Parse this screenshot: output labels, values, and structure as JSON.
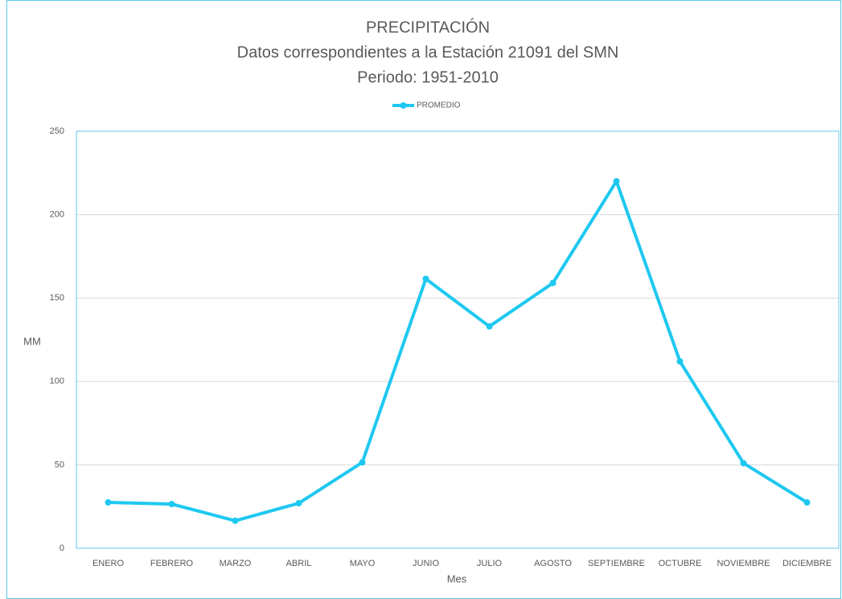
{
  "chart_data": {
    "type": "line",
    "title": "PRECIPITACIÓN",
    "subtitle": [
      "Datos correspondientes  a la Estación 21091 del SMN",
      "Periodo: 1951-2010"
    ],
    "x_label": "Mes",
    "y_label": "MM",
    "categories": [
      "ENERO",
      "FEBRERO",
      "MARZO",
      "ABRIL",
      "MAYO",
      "JUNIO",
      "JULIO",
      "AGOSTO",
      "SEPTIEMBRE",
      "OCTUBRE",
      "NOVIEMBRE",
      "DICIEMBRE"
    ],
    "series": [
      {
        "name": "PROMEDIO",
        "color": "#1ec8f0",
        "values": [
          27.5,
          26.5,
          16.5,
          27,
          51.5,
          161.5,
          133,
          159,
          220,
          112,
          51,
          27.5
        ]
      }
    ],
    "ylim": [
      0,
      250
    ],
    "yticks": [
      0,
      50,
      100,
      150,
      200,
      250
    ],
    "grid": true,
    "legend": "top"
  }
}
